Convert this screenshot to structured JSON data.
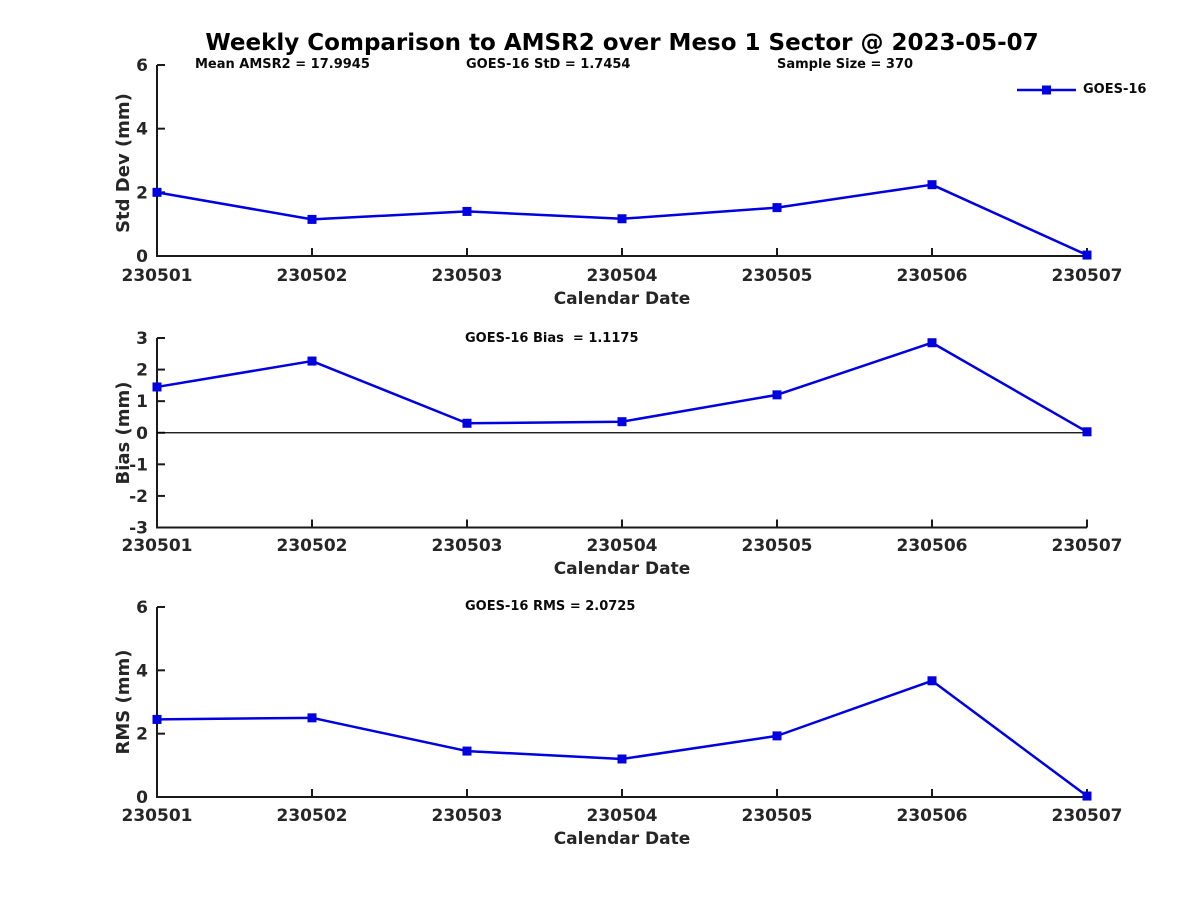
{
  "title": "Weekly Comparison to AMSR2 over Meso 1 Sector @ 2023-05-07",
  "legend": {
    "label": "GOES-16",
    "position": "top-right"
  },
  "colors": {
    "line": "#0000e0",
    "axis": "#1a1a1a",
    "tick_text": "#262626",
    "zero_line": "#000000",
    "background": "#ffffff"
  },
  "chart_data": [
    {
      "type": "line",
      "name": "std-dev-panel",
      "categories": [
        "230501",
        "230502",
        "230503",
        "230504",
        "230505",
        "230506",
        "230507"
      ],
      "series": [
        {
          "name": "GOES-16",
          "values": [
            2.0,
            1.15,
            1.4,
            1.17,
            1.52,
            2.24,
            0.03
          ]
        }
      ],
      "xlabel": "Calendar Date",
      "ylabel": "Std Dev (mm)",
      "ylim": [
        0,
        6
      ],
      "yticks": [
        0,
        2,
        4,
        6
      ],
      "grid": false,
      "zero_line": false,
      "marker": "square",
      "annotations": [
        "Mean AMSR2 = 17.9945",
        "GOES-16 StD = 1.7454",
        "Sample Size = 370"
      ]
    },
    {
      "type": "line",
      "name": "bias-panel",
      "categories": [
        "230501",
        "230502",
        "230503",
        "230504",
        "230505",
        "230506",
        "230507"
      ],
      "series": [
        {
          "name": "GOES-16",
          "values": [
            1.45,
            2.27,
            0.3,
            0.35,
            1.2,
            2.85,
            0.03
          ]
        }
      ],
      "xlabel": "Calendar Date",
      "ylabel": "Bias (mm)",
      "ylim": [
        -3,
        3
      ],
      "yticks": [
        -3,
        -2,
        -1,
        0,
        1,
        2,
        3
      ],
      "grid": false,
      "zero_line": true,
      "marker": "square",
      "annotation": "GOES-16 Bias  = 1.1175"
    },
    {
      "type": "line",
      "name": "rms-panel",
      "categories": [
        "230501",
        "230502",
        "230503",
        "230504",
        "230505",
        "230506",
        "230507"
      ],
      "series": [
        {
          "name": "GOES-16",
          "values": [
            2.45,
            2.5,
            1.45,
            1.2,
            1.93,
            3.67,
            0.03
          ]
        }
      ],
      "xlabel": "Calendar Date",
      "ylabel": "RMS (mm)",
      "ylim": [
        0,
        6
      ],
      "yticks": [
        0,
        2,
        4,
        6
      ],
      "grid": false,
      "zero_line": false,
      "marker": "square",
      "annotation": "GOES-16 RMS = 2.0725"
    }
  ]
}
